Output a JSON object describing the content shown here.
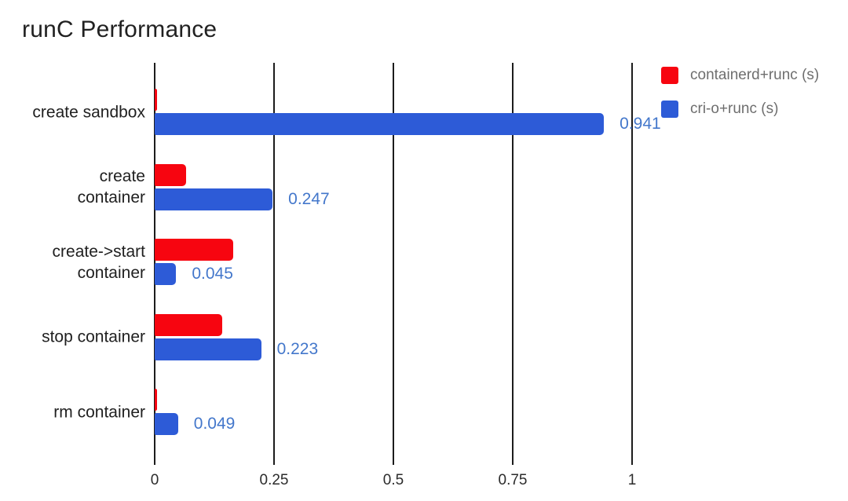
{
  "page": {
    "title": "runC Performance"
  },
  "legend": {
    "items": [
      {
        "label": "containerd+runc (s)",
        "color": "#f70510"
      },
      {
        "label": "cri-o+runc (s)",
        "color": "#2d5bd7"
      }
    ]
  },
  "chart_data": {
    "type": "bar",
    "orientation": "horizontal",
    "title": "runC Performance",
    "categories": [
      "create sandbox",
      "create container",
      "create->start container",
      "stop container",
      "rm container"
    ],
    "category_lines": [
      [
        "create sandbox"
      ],
      [
        "create",
        "container"
      ],
      [
        "create->start",
        "container"
      ],
      [
        "stop container"
      ],
      [
        "rm container"
      ]
    ],
    "series": [
      {
        "name": "containerd+runc (s)",
        "color": "#f70510",
        "values": [
          0.004,
          0.066,
          0.165,
          0.141,
          0.005
        ],
        "data_labels": null
      },
      {
        "name": "cri-o+runc (s)",
        "color": "#2d5bd7",
        "values": [
          0.941,
          0.247,
          0.045,
          0.223,
          0.049
        ],
        "data_labels": [
          "0.941",
          "0.247",
          "0.045",
          "0.223",
          "0.049"
        ],
        "label_color": "#4377cb"
      }
    ],
    "xlabel": "",
    "ylabel": "",
    "xlim": [
      0,
      1
    ],
    "x_ticks": [
      {
        "value": 0,
        "label": "0"
      },
      {
        "value": 0.25,
        "label": "0.25"
      },
      {
        "value": 0.5,
        "label": "0.5"
      },
      {
        "value": 0.75,
        "label": "0.75"
      },
      {
        "value": 1,
        "label": "1"
      }
    ],
    "grid": true,
    "gridline_color": "#1c1c1c",
    "legend_position": "top-right"
  }
}
